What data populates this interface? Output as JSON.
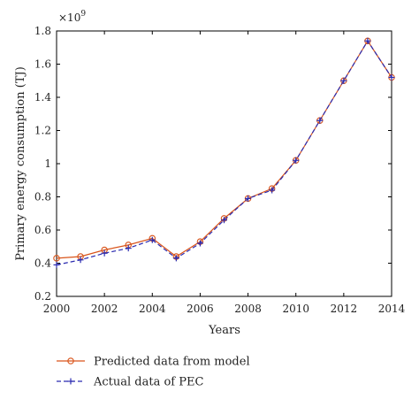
{
  "chart_data": {
    "type": "line",
    "xlabel": "Years",
    "ylabel": "Primary energy consumption (TJ)",
    "y_multiplier": "×10",
    "y_multiplier_exp": "9",
    "xlim": [
      2000,
      2014
    ],
    "ylim": [
      0.2,
      1.8
    ],
    "xticks": [
      "2000",
      "2002",
      "2004",
      "2006",
      "2008",
      "2010",
      "2012",
      "2014"
    ],
    "yticks": [
      "0.2",
      "0.4",
      "0.6",
      "0.8",
      "1",
      "1.2",
      "1.4",
      "1.6",
      "1.8"
    ],
    "x": [
      2000,
      2001,
      2002,
      2003,
      2004,
      2005,
      2006,
      2007,
      2008,
      2009,
      2010,
      2011,
      2012,
      2013,
      2014
    ],
    "series": [
      {
        "name": "Predicted data from model",
        "color": "#d9541a",
        "style": "solid",
        "marker": "circle",
        "values": [
          0.43,
          0.44,
          0.48,
          0.51,
          0.55,
          0.44,
          0.53,
          0.67,
          0.79,
          0.85,
          1.02,
          1.26,
          1.5,
          1.74,
          1.52
        ]
      },
      {
        "name": "Actual data of PEC",
        "color": "#2b2bb0",
        "style": "dashed",
        "marker": "plus",
        "values": [
          0.39,
          0.42,
          0.46,
          0.49,
          0.54,
          0.43,
          0.52,
          0.66,
          0.79,
          0.84,
          1.02,
          1.26,
          1.5,
          1.74,
          1.52
        ]
      }
    ],
    "grid": false,
    "legend_position": "bottom"
  }
}
